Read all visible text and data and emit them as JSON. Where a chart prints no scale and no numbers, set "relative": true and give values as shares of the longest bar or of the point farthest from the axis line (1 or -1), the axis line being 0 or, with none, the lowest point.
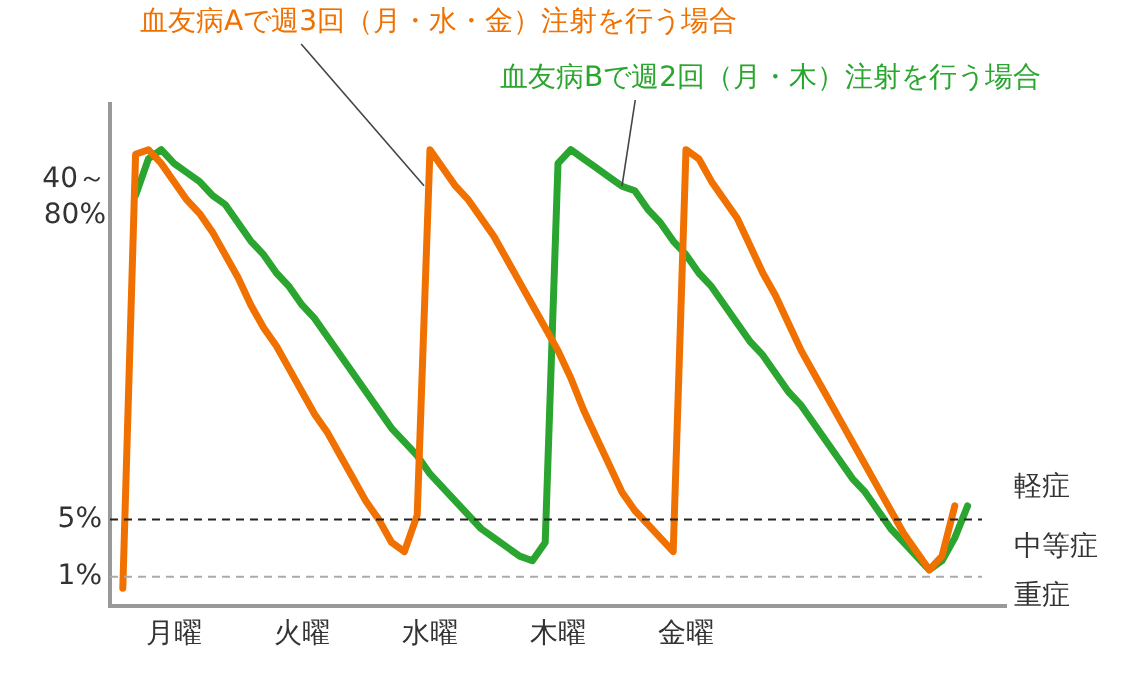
{
  "chart_data": {
    "type": "line",
    "relative": true,
    "legend": false,
    "grid": false,
    "marker": "none",
    "line_style": "solid",
    "categories": [
      null,
      null,
      null,
      null,
      null,
      "月曜",
      null,
      null,
      null,
      null,
      null,
      null,
      null,
      null,
      null,
      "火曜",
      null,
      null,
      null,
      null,
      null,
      null,
      null,
      null,
      null,
      "水曜",
      null,
      null,
      null,
      null,
      null,
      null,
      null,
      null,
      null,
      "木曜",
      null,
      null,
      null,
      null,
      null,
      null,
      null,
      null,
      null,
      "金曜",
      null,
      null,
      null,
      null,
      null,
      null,
      null,
      null,
      null,
      null,
      null,
      null,
      null,
      null,
      null,
      null,
      null,
      null,
      null,
      null,
      null,
      null,
      null,
      null,
      null
    ],
    "series": [
      {
        "name": "血友病Aで週3回（月・水・金）注射を行う場合",
        "color": "#f07000",
        "values": [
          null,
          0.04,
          0.99,
          1.0,
          0.97,
          0.93,
          0.89,
          0.86,
          0.82,
          0.77,
          0.72,
          0.66,
          0.61,
          0.57,
          0.52,
          0.47,
          0.42,
          0.38,
          0.33,
          0.28,
          0.23,
          0.19,
          0.14,
          0.12,
          0.2,
          1.0,
          0.96,
          0.92,
          0.89,
          0.85,
          0.81,
          0.76,
          0.71,
          0.66,
          0.61,
          0.56,
          0.5,
          0.43,
          0.37,
          0.31,
          0.25,
          0.21,
          0.18,
          0.15,
          0.12,
          1.0,
          0.98,
          0.93,
          0.89,
          0.85,
          0.79,
          0.73,
          0.68,
          0.62,
          0.56,
          0.51,
          0.46,
          0.41,
          0.36,
          0.31,
          0.26,
          0.21,
          0.16,
          0.12,
          0.08,
          0.11,
          0.22,
          null,
          null,
          null,
          null
        ]
      },
      {
        "name": "血友病Bで週2回（月・木）注射を行う場合",
        "color": "#2aa52f",
        "values": [
          null,
          null,
          0.9,
          0.98,
          1.0,
          0.97,
          0.95,
          0.93,
          0.9,
          0.88,
          0.84,
          0.8,
          0.77,
          0.73,
          0.7,
          0.66,
          0.63,
          0.59,
          0.55,
          0.51,
          0.47,
          0.43,
          0.39,
          0.36,
          0.33,
          0.29,
          0.26,
          0.23,
          0.2,
          0.17,
          0.15,
          0.13,
          0.11,
          0.1,
          0.14,
          0.97,
          1.0,
          0.98,
          0.96,
          0.94,
          0.92,
          0.91,
          0.87,
          0.84,
          0.8,
          0.77,
          0.73,
          0.7,
          0.66,
          0.62,
          0.58,
          0.55,
          0.51,
          0.47,
          0.44,
          0.4,
          0.36,
          0.32,
          0.28,
          0.25,
          0.21,
          0.17,
          0.14,
          0.11,
          0.08,
          0.1,
          0.15,
          0.22,
          null,
          null,
          null
        ]
      }
    ],
    "ref_lines": [
      {
        "axis": "y",
        "value": 0.19,
        "color": "#222222",
        "line_style": "dashed"
      },
      {
        "axis": "y",
        "value": 0.065,
        "color": "#aaaaaa",
        "line_style": "dashed"
      }
    ],
    "annotations": [
      "40～80%",
      "5%",
      "1%",
      "軽症",
      "中等症",
      "重症"
    ]
  }
}
